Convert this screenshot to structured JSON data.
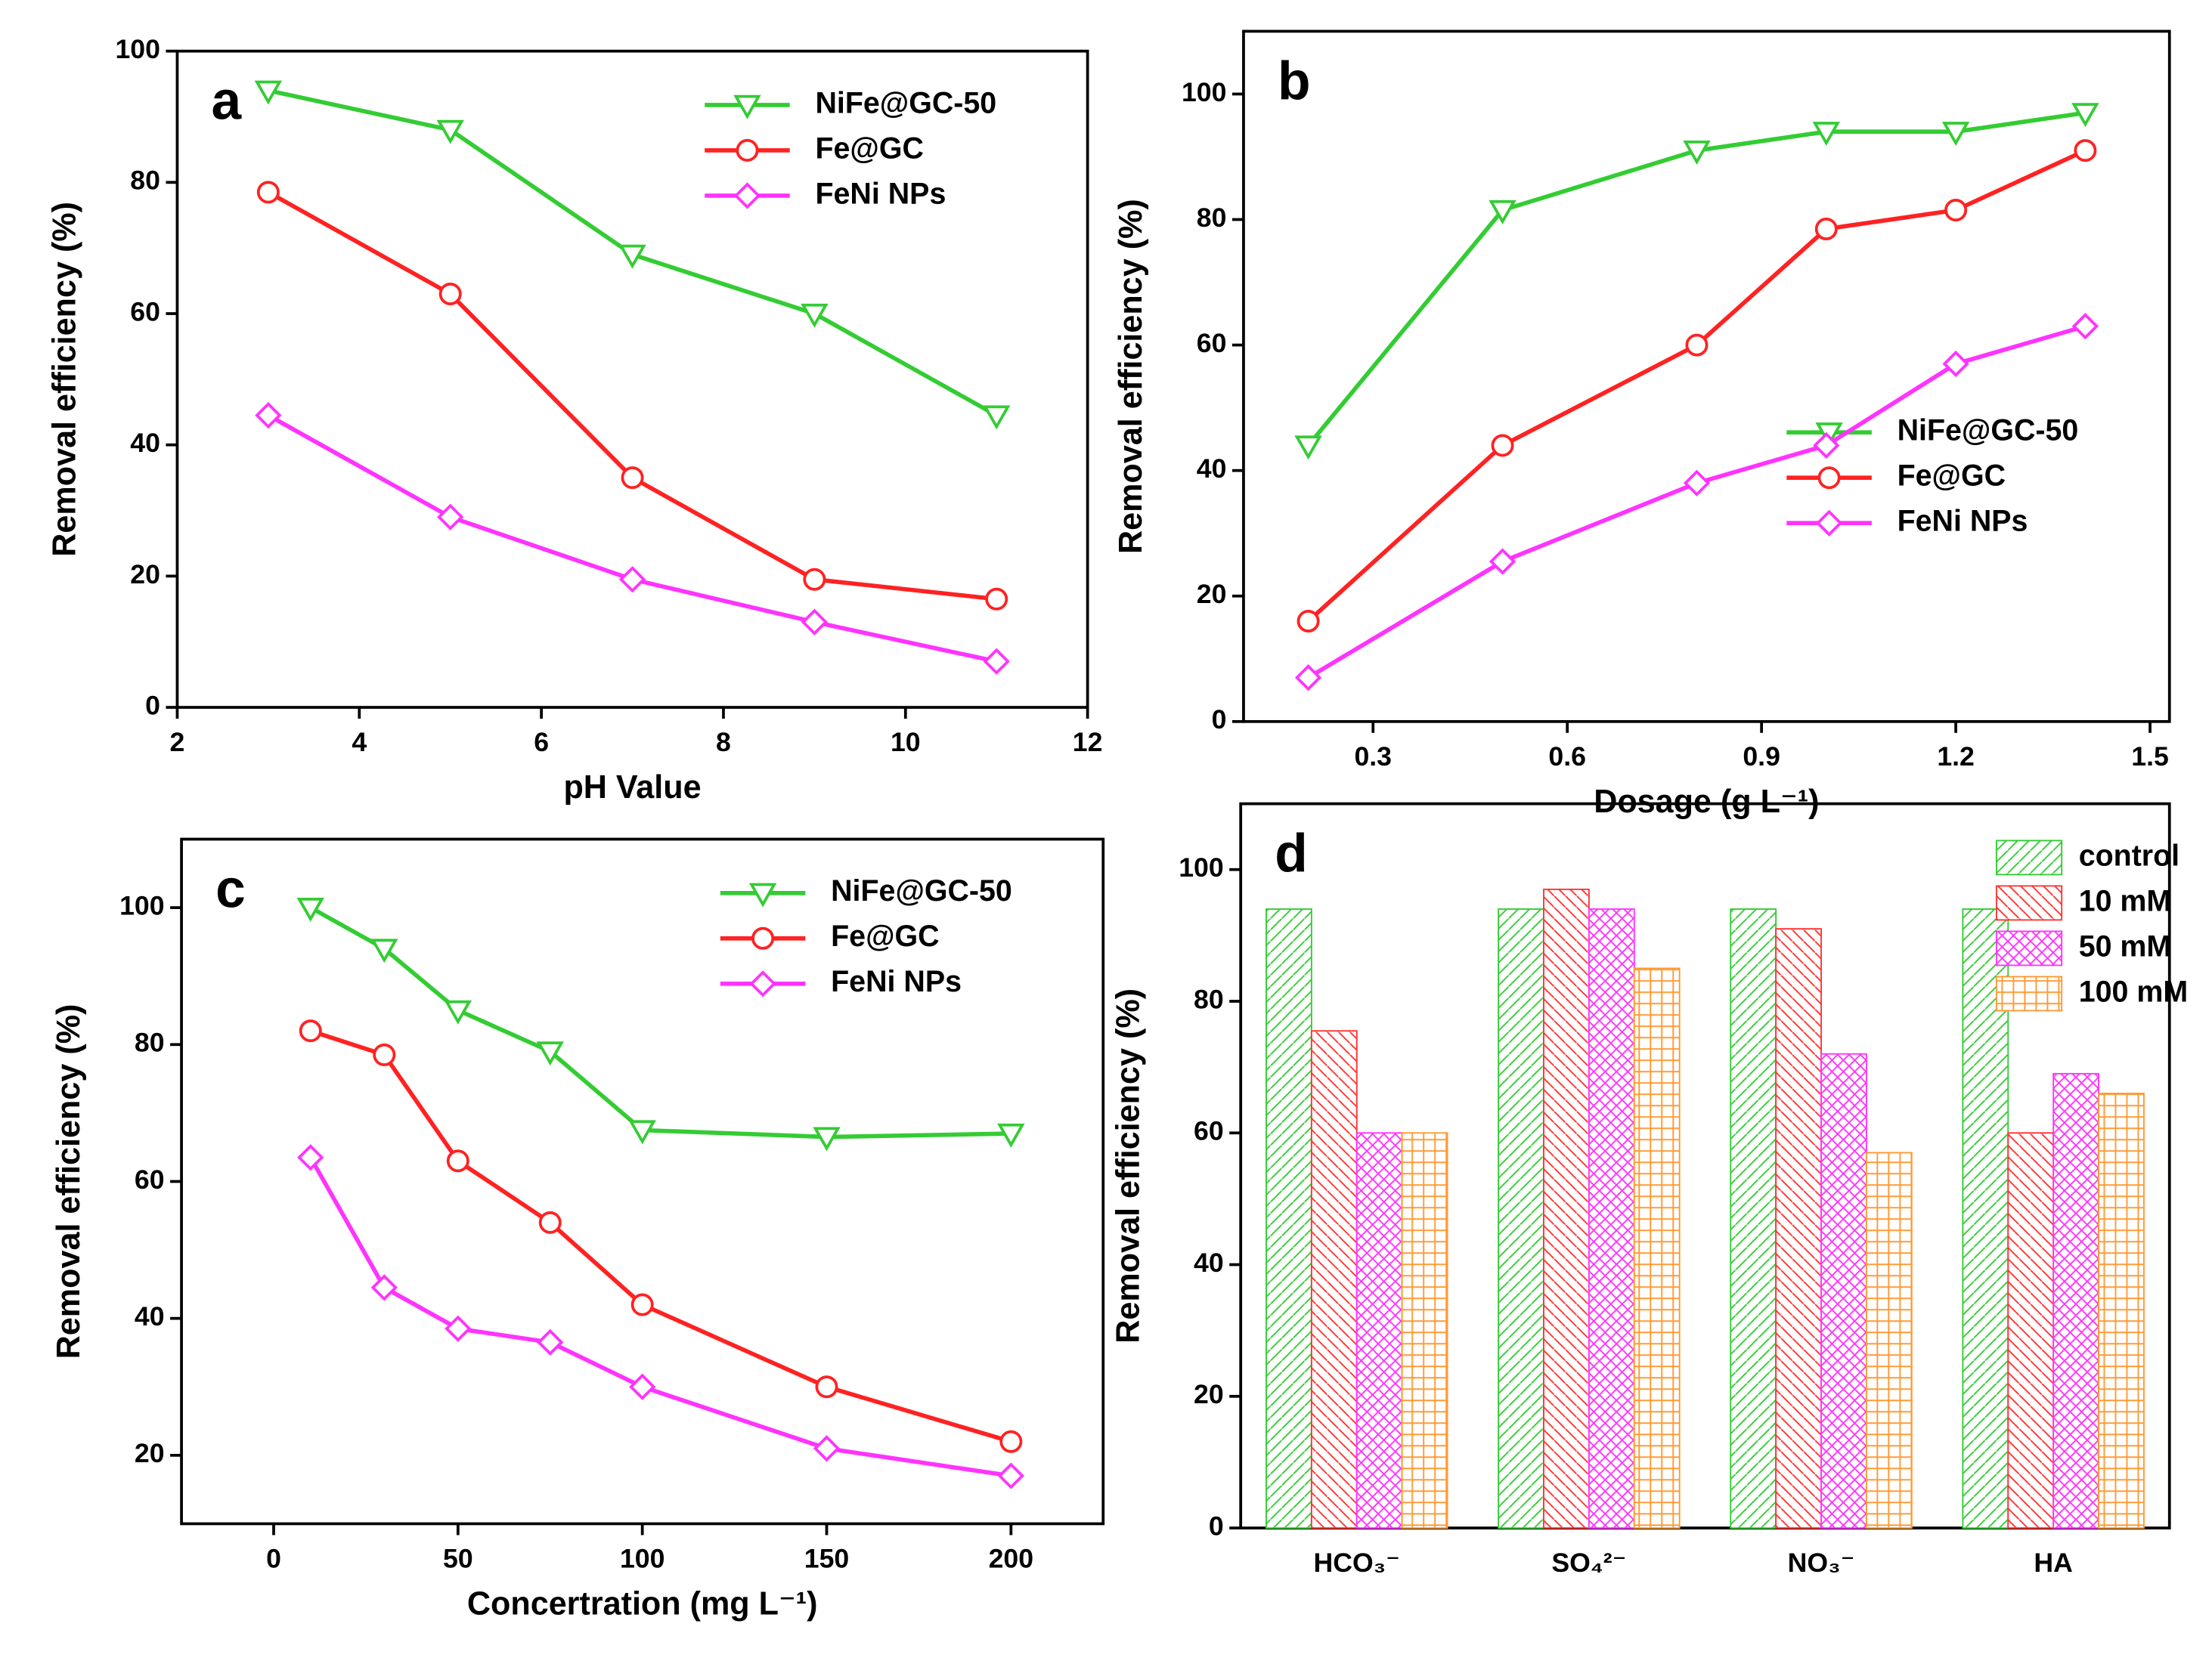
{
  "chart_data": [
    {
      "type": "line",
      "label": "a",
      "x_label": "pH Value",
      "y_label": "Removal efficiency (%)",
      "x": [
        3,
        5,
        7,
        9,
        11
      ],
      "xlim": [
        2,
        12
      ],
      "xticks": [
        2,
        4,
        6,
        8,
        10,
        12
      ],
      "ylim": [
        0,
        100
      ],
      "yticks": [
        0,
        20,
        40,
        60,
        80,
        100
      ],
      "legend": "upper right",
      "series": [
        {
          "name": "NiFe@GC-50",
          "color": "#33cc33",
          "marker": "triangle-down",
          "values": [
            94,
            88,
            69,
            60,
            44.5
          ]
        },
        {
          "name": "Fe@GC",
          "color": "#ff2222",
          "marker": "circle",
          "values": [
            78.5,
            63,
            35,
            19.5,
            16.5
          ]
        },
        {
          "name": "FeNi NPs",
          "color": "#ff33ff",
          "marker": "diamond",
          "values": [
            44.5,
            29,
            19.5,
            13,
            7
          ]
        }
      ]
    },
    {
      "type": "line",
      "label": "b",
      "x_label": "Dosage (g L⁻¹)",
      "y_label": "Removal efficiency (%)",
      "x": [
        0.2,
        0.5,
        0.8,
        1.0,
        1.2,
        1.4
      ],
      "xlim": [
        0.1,
        1.53
      ],
      "xticks": [
        0.3,
        0.6,
        0.9,
        1.2,
        1.5
      ],
      "ylim": [
        0,
        110
      ],
      "yticks": [
        0,
        20,
        40,
        60,
        80,
        100
      ],
      "legend": "lower right",
      "series": [
        {
          "name": "NiFe@GC-50",
          "color": "#33cc33",
          "marker": "triangle-down",
          "values": [
            44,
            81.5,
            91,
            94,
            94,
            97
          ]
        },
        {
          "name": "Fe@GC",
          "color": "#ff2222",
          "marker": "circle",
          "values": [
            16,
            44,
            60,
            78.5,
            81.5,
            91
          ]
        },
        {
          "name": "FeNi NPs",
          "color": "#ff33ff",
          "marker": "diamond",
          "values": [
            7,
            25.5,
            38,
            44,
            57,
            63
          ]
        }
      ]
    },
    {
      "type": "line",
      "label": "c",
      "x_label": "Concertration (mg L⁻¹)",
      "y_label": "Removal efficiency (%)",
      "x": [
        10,
        30,
        50,
        75,
        100,
        150,
        200
      ],
      "xlim": [
        -25,
        225
      ],
      "xticks": [
        0,
        50,
        100,
        150,
        200
      ],
      "ylim": [
        10,
        110
      ],
      "yticks": [
        20,
        40,
        60,
        80,
        100
      ],
      "legend": "upper right",
      "series": [
        {
          "name": "NiFe@GC-50",
          "color": "#33cc33",
          "marker": "triangle-down",
          "values": [
            100,
            94,
            85,
            79,
            67.5,
            66.5,
            67
          ]
        },
        {
          "name": "Fe@GC",
          "color": "#ff2222",
          "marker": "circle",
          "values": [
            82,
            78.5,
            63,
            54,
            42,
            30,
            22
          ]
        },
        {
          "name": "FeNi NPs",
          "color": "#ff33ff",
          "marker": "diamond",
          "values": [
            63.5,
            44.5,
            38.5,
            36.5,
            30,
            21,
            17
          ]
        }
      ]
    },
    {
      "type": "bar",
      "label": "d",
      "y_label": "Removal efficiency (%)",
      "categories": [
        "HCO₃⁻",
        "SO₄²⁻",
        "NO₃⁻",
        "HA"
      ],
      "ylim": [
        0,
        110
      ],
      "yticks": [
        0,
        20,
        40,
        60,
        80,
        100
      ],
      "legend": "upper right",
      "series": [
        {
          "name": "control",
          "color": "#33cc33",
          "values": [
            94,
            94,
            94,
            94
          ]
        },
        {
          "name": "10  mM",
          "color": "#ff3333",
          "values": [
            75.5,
            97,
            91,
            60
          ]
        },
        {
          "name": "50  mM",
          "color": "#ff33ff",
          "values": [
            60,
            94,
            72,
            69
          ]
        },
        {
          "name": "100 mM",
          "color": "#ff9933",
          "values": [
            60,
            85,
            57,
            66
          ]
        }
      ]
    }
  ]
}
